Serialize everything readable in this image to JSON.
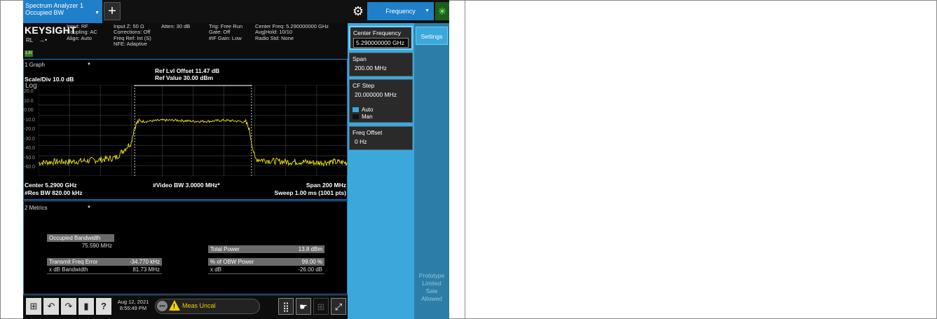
{
  "window": {
    "tab_line1": "Spectrum Analyzer 1",
    "tab_line2": "Occupied BW"
  },
  "toolbar": {
    "add_label": "+",
    "menu_label": "Frequency"
  },
  "info": {
    "logo": "KEYSIGHT",
    "rl": "RL",
    "lxi": "LXI",
    "col1": [
      "Input: RF",
      "Coupling: AC",
      "Align: Auto"
    ],
    "col2": [
      "Input Z: 50 Ω",
      "Corrections: Off",
      "Freq Ref: Int (S)",
      "NFE: Adaptive"
    ],
    "col3": [
      "Atten: 30 dB"
    ],
    "col4": [
      "Trig: Free Run",
      "Gate: Off",
      "#IF Gain: Low"
    ],
    "col5": [
      "Center Freq: 5.290000000 GHz",
      "Avg|Hold: 10/10",
      "Radio Std: None"
    ]
  },
  "graph": {
    "selector": "1 Graph",
    "ref_offset": "Ref Lvl Offset 11.47 dB",
    "ref_value": "Ref Value 30.00 dBm",
    "scale": "Scale/Div 10.0 dB",
    "scale_type": "Log",
    "y_ticks": [
      "20.0",
      "10.0",
      "0.00",
      "-10.0",
      "-20.0",
      "-30.0",
      "-40.0",
      "-50.0",
      "-60.0"
    ],
    "center": "Center 5.2900 GHz",
    "res_bw": "#Res BW 820.00 kHz",
    "video_bw": "#Video BW 3.0000 MHz*",
    "span": "Span 200 MHz",
    "sweep": "Sweep 1.00 ms (1001 pts)",
    "trace_color": "#f2e600"
  },
  "chart_data": {
    "type": "line",
    "ylabel": "",
    "xlabel": "",
    "y_unit": "dBm",
    "x_unit": "MHz",
    "xlim": [
      5190,
      5390
    ],
    "ylim": [
      -60,
      30
    ],
    "grid": true,
    "series": [
      {
        "x": [
          5190,
          5200,
          5210,
          5220,
          5230,
          5240,
          5250,
          5252,
          5254,
          5256,
          5260,
          5270,
          5280,
          5290,
          5300,
          5310,
          5320,
          5324,
          5326,
          5328,
          5330,
          5340,
          5350,
          5360,
          5370,
          5380,
          5390
        ],
        "y": [
          -47,
          -46,
          -46,
          -45,
          -44,
          -42,
          -27,
          -12,
          -7,
          -6,
          -6,
          -5,
          -5,
          -6,
          -6,
          -5,
          -6,
          -7,
          -12,
          -27,
          -43,
          -45,
          -46,
          -46,
          -47,
          -46,
          -47
        ]
      }
    ],
    "obw_markers": [
      5252.2,
      5327.8
    ]
  },
  "metrics": {
    "selector": "2 Metrics",
    "occupied_label": "Occupied Bandwidth",
    "occupied_value": "75.590 MHz",
    "tfe_label": "Transmit Freq Error",
    "tfe_value": "-34.770 kHz",
    "xdb_bw_label": "x dB Bandwidth",
    "xdb_bw_value": "81.73 MHz",
    "total_power_label": "Total Power",
    "total_power_value": "13.8 dBm",
    "obw_power_label": "% of OBW Power",
    "obw_power_value": "99.00 %",
    "xdb_label": "x dB",
    "xdb_value": "-26.00 dB"
  },
  "taskbar": {
    "date": "Aug 12, 2021",
    "time": "8:55:49 PM",
    "status": "Meas Uncal",
    "help": "?"
  },
  "softkeys": {
    "center_freq_label": "Center Frequency",
    "center_freq_value": "5.290000000 GHz",
    "span_label": "Span",
    "span_value": "200.00 MHz",
    "cf_step_label": "CF Step",
    "cf_step_value": "20.000000 MHz",
    "auto_label": "Auto",
    "man_label": "Man",
    "freq_offset_label": "Freq Offset",
    "freq_offset_value": "0 Hz",
    "settings_tab": "Settings",
    "proto_lines": [
      "Prototype",
      "Limited",
      "Sale",
      "Allowed"
    ]
  }
}
